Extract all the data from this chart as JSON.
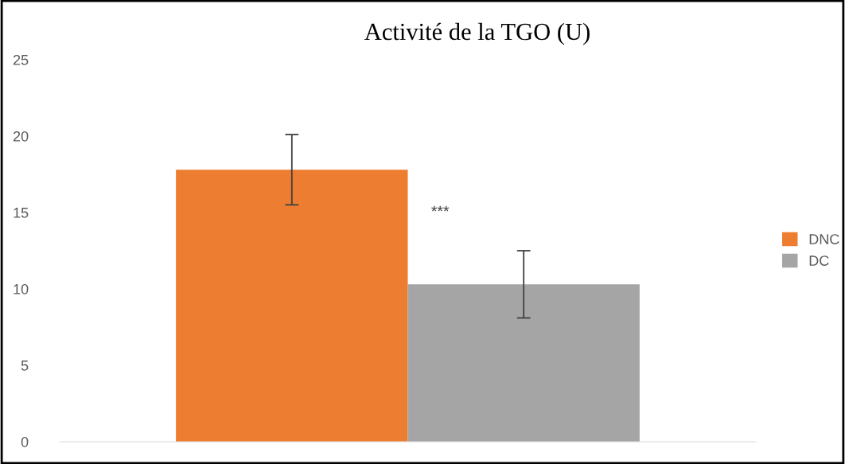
{
  "chart_data": {
    "type": "bar",
    "title": "Activité de la TGO (U)",
    "categories": [
      null
    ],
    "series": [
      {
        "name": "DNC",
        "color": "#ed7d31",
        "values": [
          17.8
        ],
        "errors": [
          2.3
        ]
      },
      {
        "name": "DC",
        "color": "#a5a5a5",
        "values": [
          10.3
        ],
        "errors": [
          2.2
        ]
      }
    ],
    "annotations": [
      "***"
    ],
    "ylim": [
      0,
      25
    ],
    "yticks": [
      0,
      5,
      10,
      15,
      20,
      25
    ],
    "grid": false,
    "legend": "right"
  }
}
